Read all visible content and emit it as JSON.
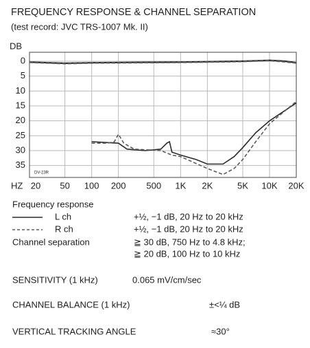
{
  "chart_data": {
    "type": "line",
    "title": "FREQUENCY RESPONSE & CHANNEL SEPARATION",
    "subtitle": "(test record: JVC TRS-1007 Mk. II)",
    "y_label": "DB",
    "x_label": "HZ",
    "note": "DV-23R",
    "log_x": true,
    "y_inverted": true,
    "grid": true,
    "xlim": [
      20,
      20000
    ],
    "ylim": [
      -3,
      39
    ],
    "xticks": [
      20,
      50,
      100,
      200,
      500,
      {
        "value": 1000,
        "label": "1K"
      },
      {
        "value": 2000,
        "label": "2K"
      },
      {
        "value": 5000,
        "label": "5K"
      },
      {
        "value": 10000,
        "label": "10K"
      },
      {
        "value": 20000,
        "label": "20K"
      }
    ],
    "yticks": [
      0,
      5,
      10,
      15,
      20,
      25,
      30,
      35
    ],
    "legend_title": "Frequency response",
    "separation_label": "Channel separation",
    "separation_specs": [
      "≧ 30 dB, 750 Hz to 4.8 kHz;",
      "≧ 20 dB, 100 Hz to 10 kHz"
    ],
    "series": [
      {
        "name": "L ch",
        "color": "#2a2a2a",
        "dash": false,
        "spec": "+½, −1 dB, 20 Hz to 20 kHz",
        "response": {
          "x": [
            20,
            50,
            100,
            300,
            1000,
            3000,
            5000,
            10000,
            15000,
            20000
          ],
          "values": [
            0.3,
            0.7,
            0.5,
            0.4,
            0.3,
            0.1,
            0,
            -0.3,
            0,
            0.5
          ]
        },
        "separation": {
          "x": [
            100,
            150,
            200,
            250,
            400,
            600,
            700,
            750,
            800,
            1000,
            1500,
            2000,
            3000,
            4000,
            5000,
            7000,
            10000,
            20000
          ],
          "values": [
            27,
            27.3,
            27.5,
            29.5,
            30,
            29.5,
            27.5,
            27,
            30.5,
            31.5,
            33,
            34.5,
            34.5,
            32,
            29,
            24,
            20,
            14
          ]
        }
      },
      {
        "name": "R ch",
        "color": "#5a5a5a",
        "dash": true,
        "spec": "+½, −1 dB, 20 Hz to 20 kHz",
        "response": {
          "x": [
            20,
            50,
            100,
            300,
            1000,
            3000,
            5000,
            10000,
            15000,
            20000
          ],
          "values": [
            0.4,
            0.8,
            0.6,
            0.5,
            0.4,
            0.2,
            0.1,
            -0.2,
            0.2,
            0.6
          ]
        },
        "separation": {
          "x": [
            100,
            150,
            180,
            200,
            230,
            300,
            600,
            800,
            1000,
            2000,
            3000,
            4000,
            5000,
            7000,
            10000,
            20000
          ],
          "values": [
            27.5,
            27.5,
            27,
            24.5,
            27.5,
            29.5,
            30,
            31.5,
            32,
            36,
            38,
            36,
            33,
            27,
            21,
            13.5
          ]
        }
      }
    ]
  },
  "specs": [
    {
      "label": "SENSITIVITY (1 kHz)",
      "value": "0.065 mV/cm/sec"
    },
    {
      "label": "CHANNEL BALANCE (1 kHz)",
      "value": "±<¼ dB"
    },
    {
      "label": "VERTICAL TRACKING ANGLE",
      "value": "≈30°"
    }
  ]
}
